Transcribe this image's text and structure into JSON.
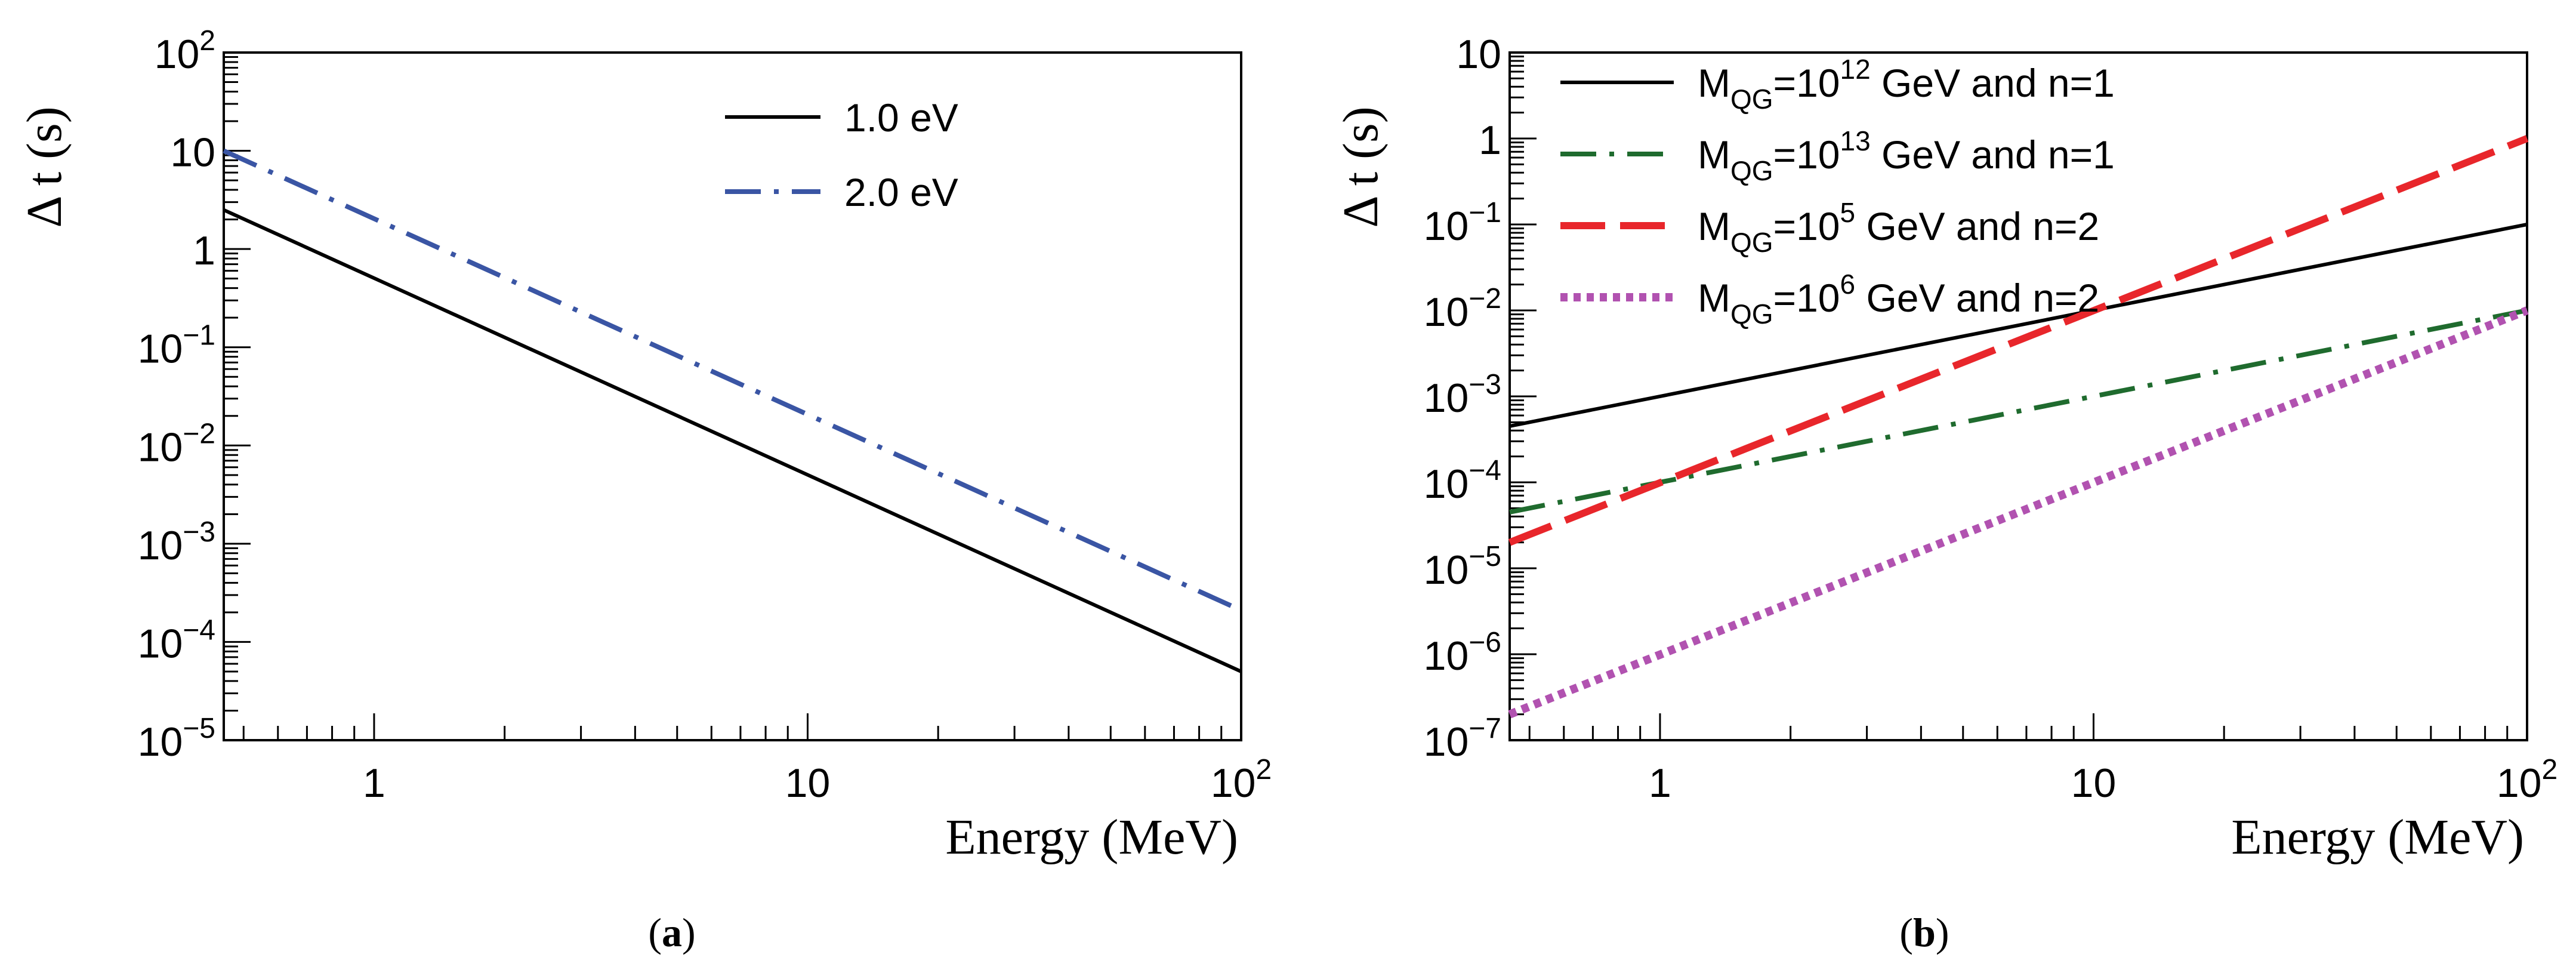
{
  "chart_data": [
    {
      "panel_label": "(a)",
      "type": "line",
      "xlabel": "Energy (MeV)",
      "ylabel": "Δ t (s)",
      "xscale": "log",
      "yscale": "log",
      "xlim": [
        0.45,
        100
      ],
      "ylim": [
        1e-05,
        100
      ],
      "x_ticks": [
        {
          "value": 1,
          "label": "1",
          "sup": ""
        },
        {
          "value": 10,
          "label": "10",
          "sup": ""
        },
        {
          "value": 100,
          "label": "10",
          "sup": "2"
        }
      ],
      "y_ticks": [
        {
          "value": 1e-05,
          "label": "10",
          "sup": "−5"
        },
        {
          "value": 0.0001,
          "label": "10",
          "sup": "−4"
        },
        {
          "value": 0.001,
          "label": "10",
          "sup": "−3"
        },
        {
          "value": 0.01,
          "label": "10",
          "sup": "−2"
        },
        {
          "value": 0.1,
          "label": "10",
          "sup": "−1"
        },
        {
          "value": 1,
          "label": "1",
          "sup": ""
        },
        {
          "value": 10,
          "label": "10",
          "sup": ""
        },
        {
          "value": 100,
          "label": "10",
          "sup": "2"
        }
      ],
      "legend_position": "top-right",
      "series": [
        {
          "name": "1.0 eV",
          "color": "#000000",
          "dash": "solid",
          "x": [
            0.45,
            100
          ],
          "y": [
            2.5,
            5e-05
          ]
        },
        {
          "name": "2.0 eV",
          "color": "#3a55a4",
          "dash": "dashdot",
          "x": [
            0.45,
            100
          ],
          "y": [
            10,
            0.00021
          ]
        }
      ]
    },
    {
      "panel_label": "(b)",
      "type": "line",
      "xlabel": "Energy (MeV)",
      "ylabel": "Δ t (s)",
      "xscale": "log",
      "yscale": "log",
      "xlim": [
        0.45,
        100
      ],
      "ylim": [
        1e-07,
        10
      ],
      "x_ticks": [
        {
          "value": 1,
          "label": "1",
          "sup": ""
        },
        {
          "value": 10,
          "label": "10",
          "sup": ""
        },
        {
          "value": 100,
          "label": "10",
          "sup": "2"
        }
      ],
      "y_ticks": [
        {
          "value": 1e-07,
          "label": "10",
          "sup": "−7"
        },
        {
          "value": 1e-06,
          "label": "10",
          "sup": "−6"
        },
        {
          "value": 1e-05,
          "label": "10",
          "sup": "−5"
        },
        {
          "value": 0.0001,
          "label": "10",
          "sup": "−4"
        },
        {
          "value": 0.001,
          "label": "10",
          "sup": "−3"
        },
        {
          "value": 0.01,
          "label": "10",
          "sup": "−2"
        },
        {
          "value": 0.1,
          "label": "10",
          "sup": "−1"
        },
        {
          "value": 1,
          "label": "1",
          "sup": ""
        },
        {
          "value": 10,
          "label": "10",
          "sup": ""
        }
      ],
      "legend_position": "top-left",
      "series": [
        {
          "name_main": "M",
          "name_sub": "QG",
          "name_mid": "=10",
          "name_sup": "12",
          "name_tail": " GeV and n=1",
          "color": "#000000",
          "dash": "solid",
          "x": [
            0.45,
            100
          ],
          "y": [
            0.00045,
            0.1
          ]
        },
        {
          "name_main": "M",
          "name_sub": "QG",
          "name_mid": "=10",
          "name_sup": "13",
          "name_tail": " GeV and n=1",
          "color": "#1f6b2e",
          "dash": "dashdot",
          "x": [
            0.45,
            100
          ],
          "y": [
            4.5e-05,
            0.01
          ]
        },
        {
          "name_main": "M",
          "name_sub": "QG",
          "name_mid": "=10",
          "name_sup": "5",
          "name_tail": " GeV and n=2",
          "color": "#e8262b",
          "dash": "longdash",
          "x": [
            0.45,
            100
          ],
          "y": [
            2e-05,
            1.0
          ]
        },
        {
          "name_main": "M",
          "name_sub": "QG",
          "name_mid": "=10",
          "name_sup": "6",
          "name_tail": " GeV and n=2",
          "color": "#b152b0",
          "dash": "dotted",
          "x": [
            0.45,
            100
          ],
          "y": [
            2e-07,
            0.01
          ]
        }
      ]
    }
  ]
}
